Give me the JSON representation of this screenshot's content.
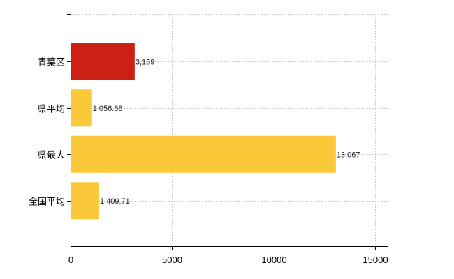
{
  "chart_data": {
    "type": "bar",
    "orientation": "horizontal",
    "title": "",
    "xlabel": "",
    "ylabel": "",
    "categories": [
      "青葉区",
      "県平均",
      "県最大",
      "全国平均"
    ],
    "values": [
      3159,
      1056.68,
      13067,
      1409.71
    ],
    "value_labels": [
      "3,159",
      "1,056.68",
      "13,067",
      "1,409.71"
    ],
    "bar_colors": [
      "#cc2014",
      "#f9c93a",
      "#f9c93a",
      "#f9c93a"
    ],
    "xlim": [
      0,
      15000
    ],
    "x_ticks": [
      0,
      5000,
      10000,
      15000
    ],
    "x_tick_labels": [
      "0",
      "5000",
      "10000",
      "15000"
    ],
    "grid": true,
    "legend": "none"
  }
}
